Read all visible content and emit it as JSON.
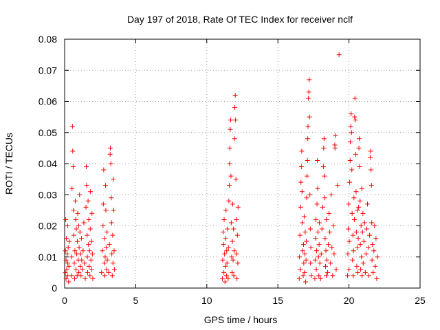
{
  "chart_data": {
    "type": "scatter",
    "title": "Day 197 of 2018, Rate Of TEC Index for receiver nclf",
    "xlabel": "GPS time / hours",
    "ylabel": "ROTI / TECUs",
    "xlim": [
      0,
      25
    ],
    "ylim": [
      0,
      0.08
    ],
    "xticks": [
      0,
      5,
      10,
      15,
      20,
      25
    ],
    "yticks": [
      0,
      0.01,
      0.02,
      0.03,
      0.04,
      0.05,
      0.06,
      0.07,
      0.08
    ],
    "xtick_labels": [
      "0",
      "5",
      "10",
      "15",
      "20",
      "25"
    ],
    "ytick_labels": [
      "0",
      "0.01",
      "0.02",
      "0.03",
      "0.04",
      "0.05",
      "0.06",
      "0.07",
      "0.08"
    ],
    "grid": true,
    "marker": "+",
    "marker_color": "#ff0000",
    "series": [
      {
        "name": "ROTI",
        "points": [
          [
            0.05,
            0.005
          ],
          [
            0.05,
            0.012
          ],
          [
            0.08,
            0.022
          ],
          [
            0.1,
            0.003
          ],
          [
            0.1,
            0.009
          ],
          [
            0.12,
            0.016
          ],
          [
            0.15,
            0.006
          ],
          [
            0.18,
            0.011
          ],
          [
            0.2,
            0.004
          ],
          [
            0.2,
            0.02
          ],
          [
            0.22,
            0.008
          ],
          [
            0.25,
            0.013
          ],
          [
            0.28,
            0.002
          ],
          [
            0.3,
            0.007
          ],
          [
            0.32,
            0.015
          ],
          [
            0.5,
            0.004
          ],
          [
            0.5,
            0.01
          ],
          [
            0.52,
            0.032
          ],
          [
            0.55,
            0.052
          ],
          [
            0.57,
            0.044
          ],
          [
            0.6,
            0.039
          ],
          [
            0.62,
            0.025
          ],
          [
            0.65,
            0.017
          ],
          [
            0.68,
            0.008
          ],
          [
            0.7,
            0.003
          ],
          [
            0.72,
            0.012
          ],
          [
            0.75,
            0.028
          ],
          [
            0.78,
            0.022
          ],
          [
            0.8,
            0.006
          ],
          [
            0.82,
            0.019
          ],
          [
            0.85,
            0.011
          ],
          [
            0.88,
            0.004
          ],
          [
            0.9,
            0.015
          ],
          [
            0.92,
            0.024
          ],
          [
            0.95,
            0.009
          ],
          [
            0.98,
            0.02
          ],
          [
            1.0,
            0.005
          ],
          [
            1.02,
            0.013
          ],
          [
            1.05,
            0.03
          ],
          [
            1.08,
            0.018
          ],
          [
            1.1,
            0.007
          ],
          [
            1.12,
            0.011
          ],
          [
            1.15,
            0.004
          ],
          [
            1.18,
            0.016
          ],
          [
            1.2,
            0.009
          ],
          [
            1.25,
            0.006
          ],
          [
            1.3,
            0.012
          ],
          [
            1.35,
            0.021
          ],
          [
            1.4,
            0.008
          ],
          [
            1.45,
            0.003
          ],
          [
            1.5,
            0.026
          ],
          [
            1.52,
            0.039
          ],
          [
            1.55,
            0.033
          ],
          [
            1.58,
            0.017
          ],
          [
            1.6,
            0.01
          ],
          [
            1.62,
            0.005
          ],
          [
            1.65,
            0.028
          ],
          [
            1.68,
            0.014
          ],
          [
            1.7,
            0.022
          ],
          [
            1.72,
            0.007
          ],
          [
            1.75,
            0.012
          ],
          [
            1.78,
            0.004
          ],
          [
            1.8,
            0.019
          ],
          [
            1.82,
            0.031
          ],
          [
            1.85,
            0.009
          ],
          [
            1.88,
            0.015
          ],
          [
            1.9,
            0.006
          ],
          [
            1.92,
            0.024
          ],
          [
            1.95,
            0.011
          ],
          [
            1.98,
            0.003
          ],
          [
            2.6,
            0.005
          ],
          [
            2.65,
            0.012
          ],
          [
            2.7,
            0.02
          ],
          [
            2.72,
            0.027
          ],
          [
            2.75,
            0.038
          ],
          [
            2.78,
            0.008
          ],
          [
            2.8,
            0.016
          ],
          [
            2.82,
            0.004
          ],
          [
            2.85,
            0.01
          ],
          [
            2.88,
            0.033
          ],
          [
            2.9,
            0.025
          ],
          [
            2.92,
            0.013
          ],
          [
            2.95,
            0.006
          ],
          [
            2.98,
            0.018
          ],
          [
            3.0,
            0.009
          ],
          [
            3.1,
            0.005
          ],
          [
            3.15,
            0.014
          ],
          [
            3.2,
            0.043
          ],
          [
            3.22,
            0.045
          ],
          [
            3.25,
            0.04
          ],
          [
            3.28,
            0.029
          ],
          [
            3.3,
            0.021
          ],
          [
            3.32,
            0.011
          ],
          [
            3.35,
            0.004
          ],
          [
            3.38,
            0.017
          ],
          [
            3.4,
            0.008
          ],
          [
            3.42,
            0.035
          ],
          [
            3.45,
            0.025
          ],
          [
            3.48,
            0.012
          ],
          [
            3.5,
            0.006
          ],
          [
            11.1,
            0.003
          ],
          [
            11.12,
            0.009
          ],
          [
            11.15,
            0.018
          ],
          [
            11.18,
            0.014
          ],
          [
            11.2,
            0.005
          ],
          [
            11.22,
            0.022
          ],
          [
            11.25,
            0.011
          ],
          [
            11.28,
            0.002
          ],
          [
            11.3,
            0.007
          ],
          [
            11.32,
            0.016
          ],
          [
            11.35,
            0.025
          ],
          [
            11.38,
            0.004
          ],
          [
            11.4,
            0.012
          ],
          [
            11.42,
            0.008
          ],
          [
            11.45,
            0.019
          ],
          [
            11.5,
            0.003
          ],
          [
            11.52,
            0.013
          ],
          [
            11.55,
            0.028
          ],
          [
            11.58,
            0.033
          ],
          [
            11.6,
            0.04
          ],
          [
            11.62,
            0.045
          ],
          [
            11.65,
            0.051
          ],
          [
            11.68,
            0.054
          ],
          [
            11.7,
            0.036
          ],
          [
            11.72,
            0.021
          ],
          [
            11.75,
            0.01
          ],
          [
            11.78,
            0.005
          ],
          [
            11.8,
            0.015
          ],
          [
            11.82,
            0.027
          ],
          [
            11.85,
            0.009
          ],
          [
            11.88,
            0.019
          ],
          [
            11.9,
            0.004
          ],
          [
            11.92,
            0.012
          ],
          [
            11.95,
            0.048
          ],
          [
            11.97,
            0.058
          ],
          [
            12.0,
            0.062
          ],
          [
            12.02,
            0.054
          ],
          [
            12.05,
            0.035
          ],
          [
            12.08,
            0.022
          ],
          [
            12.1,
            0.011
          ],
          [
            12.12,
            0.003
          ],
          [
            12.15,
            0.017
          ],
          [
            12.18,
            0.008
          ],
          [
            12.2,
            0.026
          ],
          [
            16.5,
            0.003
          ],
          [
            16.52,
            0.01
          ],
          [
            16.55,
            0.017
          ],
          [
            16.58,
            0.006
          ],
          [
            16.6,
            0.026
          ],
          [
            16.62,
            0.034
          ],
          [
            16.65,
            0.039
          ],
          [
            16.68,
            0.044
          ],
          [
            16.7,
            0.031
          ],
          [
            16.72,
            0.021
          ],
          [
            16.75,
            0.012
          ],
          [
            16.78,
            0.004
          ],
          [
            16.8,
            0.014
          ],
          [
            16.82,
            0.008
          ],
          [
            16.85,
            0.023
          ],
          [
            16.88,
            0.005
          ],
          [
            16.9,
            0.011
          ],
          [
            16.92,
            0.018
          ],
          [
            16.95,
            0.002
          ],
          [
            16.98,
            0.009
          ],
          [
            17.0,
            0.015
          ],
          [
            17.02,
            0.029
          ],
          [
            17.05,
            0.036
          ],
          [
            17.08,
            0.041
          ],
          [
            17.1,
            0.048
          ],
          [
            17.12,
            0.052
          ],
          [
            17.15,
            0.061
          ],
          [
            17.18,
            0.063
          ],
          [
            17.2,
            0.067
          ],
          [
            17.22,
            0.055
          ],
          [
            17.25,
            0.03
          ],
          [
            17.28,
            0.019
          ],
          [
            17.3,
            0.008
          ],
          [
            17.32,
            0.013
          ],
          [
            17.35,
            0.004
          ],
          [
            17.6,
            0.003
          ],
          [
            17.62,
            0.009
          ],
          [
            17.65,
            0.016
          ],
          [
            17.68,
            0.022
          ],
          [
            17.7,
            0.006
          ],
          [
            17.72,
            0.012
          ],
          [
            17.75,
            0.027
          ],
          [
            17.78,
            0.041
          ],
          [
            17.8,
            0.032
          ],
          [
            17.82,
            0.018
          ],
          [
            17.85,
            0.01
          ],
          [
            17.88,
            0.004
          ],
          [
            17.9,
            0.014
          ],
          [
            17.92,
            0.021
          ],
          [
            17.95,
            0.008
          ],
          [
            18.0,
            0.003
          ],
          [
            18.05,
            0.011
          ],
          [
            18.1,
            0.019
          ],
          [
            18.15,
            0.026
          ],
          [
            18.2,
            0.039
          ],
          [
            18.22,
            0.045
          ],
          [
            18.25,
            0.048
          ],
          [
            18.28,
            0.036
          ],
          [
            18.3,
            0.029
          ],
          [
            18.32,
            0.016
          ],
          [
            18.35,
            0.007
          ],
          [
            18.38,
            0.012
          ],
          [
            18.4,
            0.004
          ],
          [
            18.42,
            0.022
          ],
          [
            18.45,
            0.009
          ],
          [
            18.5,
            0.005
          ],
          [
            18.55,
            0.014
          ],
          [
            18.6,
            0.024
          ],
          [
            18.65,
            0.018
          ],
          [
            18.7,
            0.008
          ],
          [
            18.75,
            0.03
          ],
          [
            18.8,
            0.013
          ],
          [
            18.85,
            0.004
          ],
          [
            18.9,
            0.02
          ],
          [
            18.95,
            0.011
          ],
          [
            19.0,
            0.046
          ],
          [
            19.02,
            0.045
          ],
          [
            19.05,
            0.049
          ],
          [
            19.1,
            0.006
          ],
          [
            19.2,
            0.033
          ],
          [
            19.3,
            0.075
          ],
          [
            19.9,
            0.004
          ],
          [
            19.92,
            0.011
          ],
          [
            19.95,
            0.019
          ],
          [
            19.98,
            0.027
          ],
          [
            20.0,
            0.006
          ],
          [
            20.02,
            0.015
          ],
          [
            20.05,
            0.034
          ],
          [
            20.08,
            0.041
          ],
          [
            20.1,
            0.047
          ],
          [
            20.12,
            0.052
          ],
          [
            20.15,
            0.056
          ],
          [
            20.18,
            0.05
          ],
          [
            20.2,
            0.038
          ],
          [
            20.22,
            0.024
          ],
          [
            20.25,
            0.009
          ],
          [
            20.28,
            0.017
          ],
          [
            20.3,
            0.004
          ],
          [
            20.32,
            0.012
          ],
          [
            20.35,
            0.029
          ],
          [
            20.38,
            0.022
          ],
          [
            20.4,
            0.055
          ],
          [
            20.42,
            0.061
          ],
          [
            20.45,
            0.054
          ],
          [
            20.48,
            0.043
          ],
          [
            20.5,
            0.031
          ],
          [
            20.52,
            0.018
          ],
          [
            20.55,
            0.007
          ],
          [
            20.58,
            0.013
          ],
          [
            20.6,
            0.025
          ],
          [
            20.62,
            0.005
          ],
          [
            20.65,
            0.016
          ],
          [
            20.68,
            0.026
          ],
          [
            20.7,
            0.045
          ],
          [
            20.72,
            0.048
          ],
          [
            20.75,
            0.039
          ],
          [
            20.78,
            0.028
          ],
          [
            20.8,
            0.014
          ],
          [
            20.82,
            0.006
          ],
          [
            20.85,
            0.02
          ],
          [
            20.88,
            0.01
          ],
          [
            20.9,
            0.032
          ],
          [
            20.92,
            0.004
          ],
          [
            20.95,
            0.018
          ],
          [
            20.98,
            0.024
          ],
          [
            21.0,
            0.008
          ],
          [
            21.05,
            0.015
          ],
          [
            21.1,
            0.021
          ],
          [
            21.15,
            0.005
          ],
          [
            21.2,
            0.011
          ],
          [
            21.25,
            0.019
          ],
          [
            21.3,
            0.027
          ],
          [
            21.35,
            0.013
          ],
          [
            21.4,
            0.004
          ],
          [
            21.45,
            0.017
          ],
          [
            21.5,
            0.042
          ],
          [
            21.52,
            0.044
          ],
          [
            21.55,
            0.038
          ],
          [
            21.58,
            0.033
          ],
          [
            21.6,
            0.021
          ],
          [
            21.62,
            0.009
          ],
          [
            21.65,
            0.014
          ],
          [
            21.7,
            0.005
          ],
          [
            21.75,
            0.012
          ],
          [
            21.8,
            0.02
          ],
          [
            21.85,
            0.007
          ],
          [
            21.9,
            0.016
          ],
          [
            21.95,
            0.003
          ],
          [
            22.0,
            0.01
          ]
        ]
      }
    ]
  }
}
